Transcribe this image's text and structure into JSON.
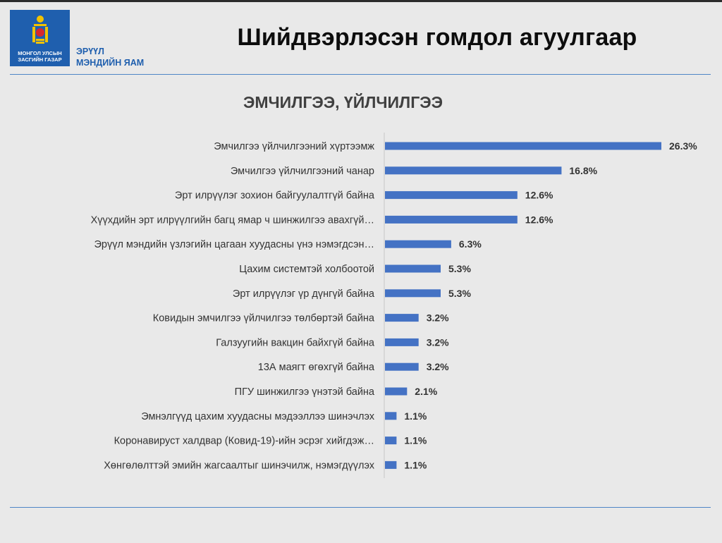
{
  "header": {
    "title": "Шийдвэрлэсэн гомдол агуулгаар",
    "logo_line1": "МОНГОЛ УЛСЫН",
    "logo_line2": "ЗАСГИЙН ГАЗАР",
    "ministry_line1": "ЭРҮҮЛ",
    "ministry_line2": "МЭНДИЙН ЯАМ"
  },
  "colors": {
    "bar": "#4472c4",
    "accent": "#1f5fae",
    "rule": "#4f86c6"
  },
  "chart_data": {
    "type": "bar",
    "orientation": "horizontal",
    "title": "ЭМЧИЛГЭЭ, ҮЙЛЧИЛГЭЭ",
    "xlim": [
      0,
      26.3
    ],
    "grid": false,
    "categories": [
      "Эмчилгээ үйлчилгээний хүртээмж",
      "Эмчилгээ үйлчилгээний чанар",
      "Эрт илрүүлэг зохион байгуулалтгүй байна",
      "Хүүхдийн эрт илрүүлгийн багц ямар ч шинжилгээ авахгүй…",
      "Эрүүл мэндийн үзлэгийн цагаан хуудасны үнэ нэмэгдсэн…",
      "Цахим системтэй холбоотой",
      "Эрт илрүүлэг үр дүнгүй байна",
      "Ковидын эмчилгээ үйлчилгээ төлбөртэй байна",
      "Галзуугийн вакцин байхгүй байна",
      "13А маягт өгөхгүй байна",
      "ПГУ шинжилгээ үнэтэй байна",
      "Эмнэлгүүд цахим хуудасны мэдээллээ шинэчлэх",
      "Коронавируст халдвар (Ковид-19)-ийн эсрэг  хийгдэж…",
      "Хөнгөлөлттэй эмийн жагсаалтыг шинэчилж, нэмэгдүүлэх"
    ],
    "values": [
      26.3,
      16.8,
      12.6,
      12.6,
      6.3,
      5.3,
      5.3,
      3.2,
      3.2,
      3.2,
      2.1,
      1.1,
      1.1,
      1.1
    ],
    "value_labels": [
      "26.3%",
      "16.8%",
      "12.6%",
      "12.6%",
      "6.3%",
      "5.3%",
      "5.3%",
      "3.2%",
      "3.2%",
      "3.2%",
      "2.1%",
      "1.1%",
      "1.1%",
      "1.1%"
    ]
  }
}
